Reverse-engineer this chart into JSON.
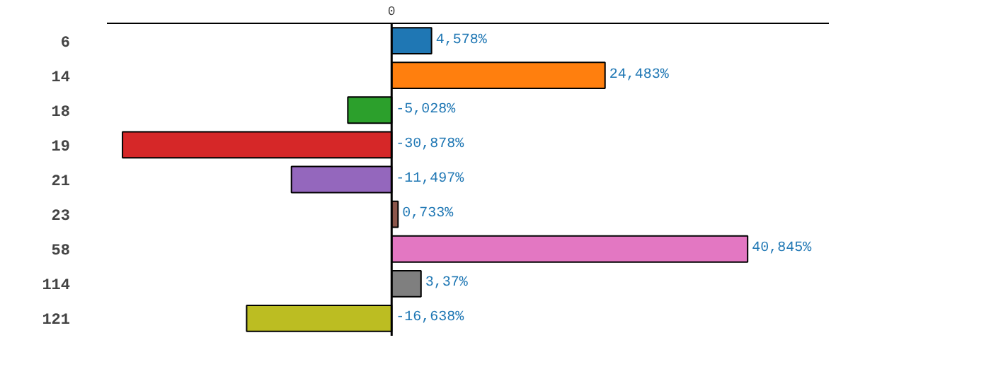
{
  "chart_data": {
    "type": "bar",
    "orientation": "horizontal",
    "categories": [
      "6",
      "14",
      "18",
      "19",
      "21",
      "23",
      "58",
      "114",
      "121"
    ],
    "values": [
      4.578,
      24.483,
      -5.028,
      -30.878,
      -11.497,
      0.733,
      40.845,
      3.37,
      -16.638
    ],
    "colors": [
      "#1f77b4",
      "#ff7f0e",
      "#2ca02c",
      "#d62728",
      "#9467bd",
      "#8c564b",
      "#e377c2",
      "#7f7f7f",
      "#bcbd22"
    ],
    "value_labels": [
      "4,578%",
      "24,483%",
      "-5,028%",
      "-30,878%",
      "-11,497%",
      "0,733%",
      "40,845%",
      "3,37%",
      "-16,638%"
    ],
    "annotations": [
      "0"
    ],
    "grid": false
  }
}
